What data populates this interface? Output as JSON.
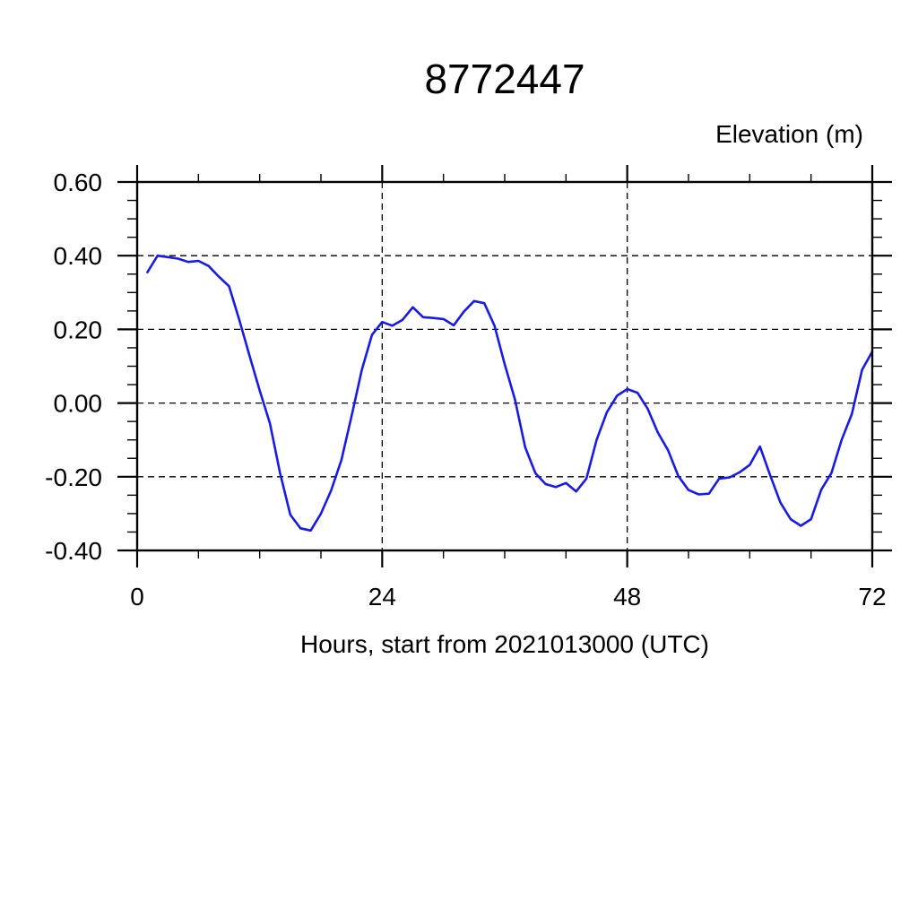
{
  "page": {
    "background": "#ffffff"
  },
  "chart_data": {
    "type": "line",
    "title": "8772447",
    "ylabel": "Elevation (m)",
    "xlabel": "Hours, start from 2021013000 (UTC)",
    "line_color": "#1a1ae6",
    "frame_color": "#000000",
    "grid": "dashed-on-major-ticks",
    "xlim": [
      0,
      72
    ],
    "ylim": [
      -0.4,
      0.6
    ],
    "x_major_ticks": [
      {
        "value": 0,
        "label": "0"
      },
      {
        "value": 24,
        "label": "24"
      },
      {
        "value": 48,
        "label": "48"
      },
      {
        "value": 72,
        "label": "72"
      }
    ],
    "x_minor_step": 6,
    "y_major_ticks": [
      {
        "value": 0.6,
        "label": "0.60"
      },
      {
        "value": 0.4,
        "label": "0.40"
      },
      {
        "value": 0.2,
        "label": "0.20"
      },
      {
        "value": 0.0,
        "label": "0.00"
      },
      {
        "value": -0.2,
        "label": "-0.20"
      },
      {
        "value": -0.4,
        "label": "-0.40"
      }
    ],
    "y_minor_step": 0.05,
    "x": [
      1,
      2,
      3,
      4,
      5,
      6,
      7,
      8,
      9,
      10,
      11,
      12,
      13,
      14,
      15,
      16,
      17,
      18,
      19,
      20,
      21,
      22,
      23,
      24,
      25,
      26,
      27,
      28,
      29,
      30,
      31,
      32,
      33,
      34,
      35,
      36,
      37,
      38,
      39,
      40,
      41,
      42,
      43,
      44,
      45,
      46,
      47,
      48,
      49,
      50,
      51,
      52,
      53,
      54,
      55,
      56,
      57,
      58,
      59,
      60,
      61,
      62,
      63,
      64,
      65,
      66,
      67,
      68,
      69,
      70,
      71,
      72
    ],
    "values": [
      0.355,
      0.4,
      0.396,
      0.392,
      0.383,
      0.386,
      0.372,
      0.343,
      0.317,
      0.226,
      0.129,
      0.034,
      -0.055,
      -0.19,
      -0.303,
      -0.34,
      -0.346,
      -0.3,
      -0.237,
      -0.155,
      -0.035,
      0.09,
      0.185,
      0.22,
      0.21,
      0.226,
      0.26,
      0.233,
      0.231,
      0.228,
      0.211,
      0.248,
      0.277,
      0.271,
      0.21,
      0.105,
      0.01,
      -0.12,
      -0.19,
      -0.22,
      -0.228,
      -0.217,
      -0.24,
      -0.205,
      -0.1,
      -0.025,
      0.02,
      0.038,
      0.028,
      -0.015,
      -0.08,
      -0.128,
      -0.198,
      -0.236,
      -0.248,
      -0.246,
      -0.205,
      -0.202,
      -0.188,
      -0.168,
      -0.118,
      -0.196,
      -0.27,
      -0.315,
      -0.333,
      -0.315,
      -0.235,
      -0.19,
      -0.1,
      -0.03,
      0.09,
      0.14
    ]
  }
}
